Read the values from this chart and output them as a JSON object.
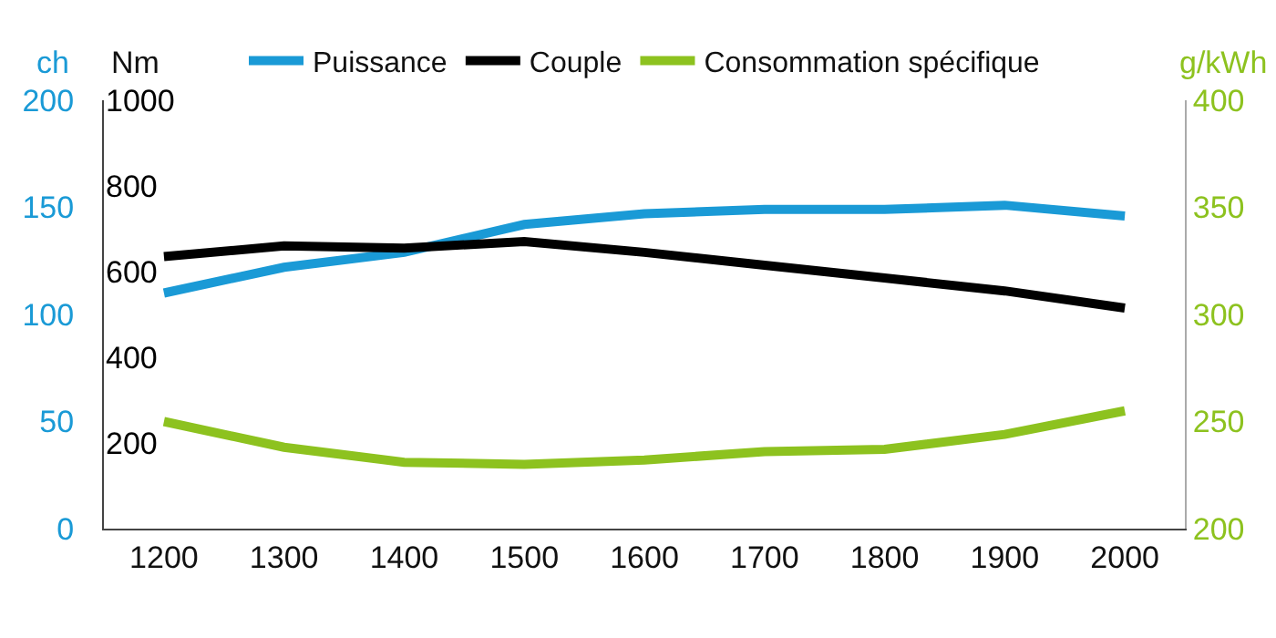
{
  "chart_data": {
    "type": "line",
    "ylabel": "ch",
    "y2label": "Nm",
    "y3label": "g/kWh",
    "categories": [
      "1200",
      "1300",
      "1400",
      "1500",
      "1600",
      "1700",
      "1800",
      "1900",
      "2000"
    ],
    "series": [
      {
        "name": "Puissance",
        "color": "#1a9ad6",
        "values": [
          110,
          122,
          129,
          142,
          147,
          149,
          149,
          151,
          146
        ]
      },
      {
        "name": "Couple",
        "color": "#000000",
        "axis": "y2",
        "values": [
          635,
          660,
          655,
          670,
          645,
          615,
          585,
          555,
          515
        ]
      },
      {
        "name": "Consommation spécifique",
        "color": "#8dc21f",
        "axis": "y3",
        "values": [
          250,
          238,
          231,
          230,
          232,
          236,
          237,
          244,
          255
        ]
      }
    ],
    "ylim": [
      0,
      200
    ],
    "yticks": [
      0,
      50,
      100,
      150,
      200
    ],
    "y2lim": [
      0,
      1000
    ],
    "y2ticks": [
      200,
      400,
      600,
      800,
      1000
    ],
    "y3lim": [
      200,
      400
    ],
    "y3ticks": [
      200,
      250,
      300,
      350,
      400
    ],
    "legend": "top",
    "marker": "none",
    "line_style": "solid"
  }
}
